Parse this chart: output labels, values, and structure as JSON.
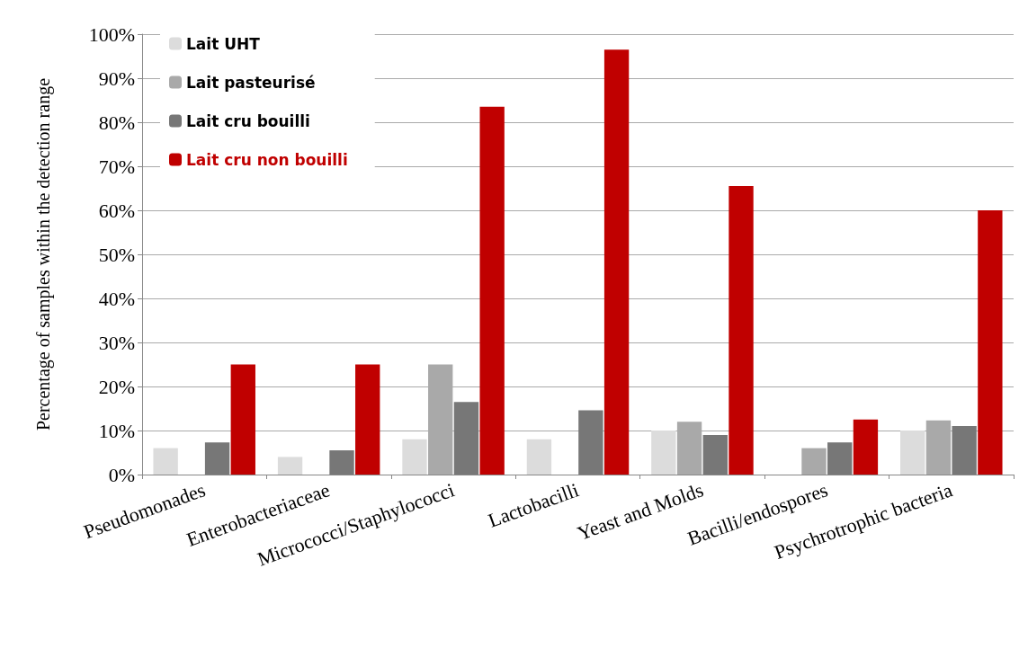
{
  "chart_data": {
    "type": "bar",
    "ylabel": "Percentage of samples within the detection range",
    "categories": [
      "Pseudomonades",
      "Enterobacteriaceae",
      "Micrococci/Staphylococci",
      "Lactobacilli",
      "Yeast and Molds",
      "Bacilli/endospores",
      "Psychrotrophic bacteria"
    ],
    "series": [
      {
        "name": "Lait UHT",
        "color": "#dcdcdc",
        "values": [
          6,
          4,
          8,
          8,
          10,
          0,
          10
        ]
      },
      {
        "name": "Lait pasteurisé",
        "color": "#a9a9a9",
        "values": [
          0,
          0,
          25,
          0,
          12,
          6,
          12.3
        ]
      },
      {
        "name": "Lait cru bouilli",
        "color": "#777777",
        "values": [
          7.3,
          5.5,
          16.5,
          14.6,
          9,
          7.3,
          11
        ]
      },
      {
        "name": "Lait cru non bouilli",
        "color": "#c00000",
        "values": [
          25,
          25,
          83.5,
          96.5,
          65.5,
          12.5,
          60
        ]
      }
    ],
    "ylim": [
      0,
      100
    ],
    "yticks": [
      {
        "value": 0,
        "label": "0%"
      },
      {
        "value": 10,
        "label": "10%"
      },
      {
        "value": 20,
        "label": "20%"
      },
      {
        "value": 30,
        "label": "30%"
      },
      {
        "value": 40,
        "label": "40%"
      },
      {
        "value": 50,
        "label": "50%"
      },
      {
        "value": 60,
        "label": "60%"
      },
      {
        "value": 70,
        "label": "70%"
      },
      {
        "value": 80,
        "label": "80%"
      },
      {
        "value": 90,
        "label": "90%"
      },
      {
        "value": 100,
        "label": "100%"
      }
    ],
    "grid": "y",
    "legend": "top left"
  }
}
